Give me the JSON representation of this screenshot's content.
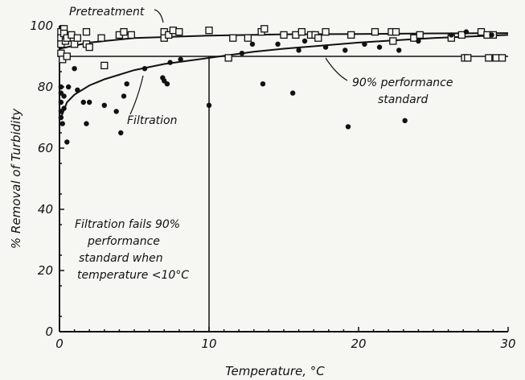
{
  "chart_data": {
    "type": "scatter",
    "title": "",
    "xlabel": "Temperature, °C",
    "ylabel": "% Removal of Turbidity",
    "xlim": [
      0,
      30
    ],
    "ylim": [
      0,
      100
    ],
    "x_ticks": [
      "0",
      "10",
      "20",
      "30"
    ],
    "y_ticks": [
      "0",
      "20",
      "40",
      "60",
      "80",
      "100"
    ],
    "grid": false,
    "series": [
      {
        "name": "Pretreatment",
        "marker": "open-square",
        "points": [
          [
            0.1,
            98
          ],
          [
            0.1,
            96
          ],
          [
            0.1,
            94
          ],
          [
            0.1,
            91
          ],
          [
            0.2,
            89
          ],
          [
            0.3,
            99
          ],
          [
            0.3,
            97.5
          ],
          [
            0.4,
            95
          ],
          [
            0.5,
            96
          ],
          [
            0.5,
            90
          ],
          [
            0.8,
            97
          ],
          [
            1.0,
            94
          ],
          [
            1.2,
            96
          ],
          [
            1.8,
            98
          ],
          [
            1.8,
            94
          ],
          [
            2.0,
            93
          ],
          [
            2.8,
            96
          ],
          [
            3.0,
            87
          ],
          [
            4.0,
            97
          ],
          [
            4.3,
            98
          ],
          [
            4.8,
            97
          ],
          [
            7.0,
            98
          ],
          [
            7.0,
            96
          ],
          [
            7.3,
            97
          ],
          [
            7.6,
            98.5
          ],
          [
            8.0,
            98
          ],
          [
            10.0,
            98.5
          ],
          [
            11.3,
            89.5
          ],
          [
            11.6,
            96
          ],
          [
            12.6,
            96
          ],
          [
            13.5,
            98
          ],
          [
            13.7,
            99
          ],
          [
            15.0,
            97
          ],
          [
            15.8,
            97
          ],
          [
            16.2,
            98
          ],
          [
            16.8,
            97
          ],
          [
            17.1,
            97
          ],
          [
            17.3,
            96
          ],
          [
            17.8,
            98
          ],
          [
            19.5,
            97
          ],
          [
            21.1,
            98
          ],
          [
            22.2,
            98
          ],
          [
            22.3,
            95
          ],
          [
            22.5,
            98
          ],
          [
            23.7,
            96
          ],
          [
            24.1,
            97
          ],
          [
            26.2,
            96
          ],
          [
            26.9,
            97
          ],
          [
            28.2,
            98
          ],
          [
            28.6,
            97
          ],
          [
            28.7,
            89.5
          ],
          [
            29.0,
            97
          ],
          [
            29.2,
            89.5
          ],
          [
            27.1,
            89.5
          ],
          [
            27.3,
            89.5
          ],
          [
            29.6,
            89.5
          ]
        ]
      },
      {
        "name": "Filtration",
        "marker": "filled-circle",
        "points": [
          [
            0.1,
            80
          ],
          [
            0.1,
            78
          ],
          [
            0.1,
            75
          ],
          [
            0.1,
            72
          ],
          [
            0.1,
            70
          ],
          [
            0.2,
            68
          ],
          [
            0.3,
            73
          ],
          [
            0.3,
            77
          ],
          [
            0.5,
            62
          ],
          [
            0.6,
            80
          ],
          [
            1.0,
            86
          ],
          [
            1.2,
            79
          ],
          [
            1.6,
            75
          ],
          [
            1.8,
            68
          ],
          [
            2.0,
            75
          ],
          [
            3.0,
            74
          ],
          [
            3.8,
            72
          ],
          [
            4.1,
            65
          ],
          [
            4.3,
            77
          ],
          [
            4.5,
            81
          ],
          [
            5.7,
            86
          ],
          [
            6.9,
            83
          ],
          [
            7.0,
            82
          ],
          [
            7.2,
            81
          ],
          [
            7.4,
            88
          ],
          [
            8.1,
            89
          ],
          [
            10.0,
            74
          ],
          [
            13.6,
            81
          ],
          [
            15.6,
            78
          ],
          [
            19.3,
            67
          ],
          [
            23.1,
            69
          ],
          [
            12.2,
            91
          ],
          [
            16.0,
            92
          ],
          [
            17.8,
            93
          ],
          [
            19.1,
            92
          ],
          [
            20.4,
            94
          ],
          [
            21.4,
            93
          ],
          [
            22.7,
            92
          ],
          [
            24.0,
            95
          ],
          [
            26.2,
            97
          ],
          [
            27.2,
            98
          ],
          [
            28.9,
            97
          ],
          [
            12.9,
            94
          ],
          [
            14.6,
            94
          ],
          [
            16.4,
            95
          ]
        ]
      }
    ],
    "fit_curves": [
      {
        "name": "Pretreatment",
        "x": [
          0,
          2,
          5,
          10,
          15,
          20,
          25,
          30
        ],
        "y": [
          92.5,
          94.5,
          96,
          96.8,
          97.2,
          97.3,
          97.5,
          97.6
        ]
      },
      {
        "name": "Filtration",
        "x": [
          0.1,
          0.5,
          1,
          2,
          3,
          5,
          7,
          10,
          13,
          15,
          20,
          25,
          30
        ],
        "y": [
          70,
          75,
          77.5,
          80.5,
          82.5,
          85.5,
          87.5,
          89.5,
          91.5,
          92.5,
          94.5,
          96,
          97
        ]
      }
    ],
    "reference_lines": [
      {
        "orientation": "horizontal",
        "y": 90,
        "label": "90% performance standard"
      },
      {
        "orientation": "vertical",
        "x": 10
      }
    ],
    "annotations": [
      {
        "key": "pretreatment",
        "text": "Pretreatment"
      },
      {
        "key": "filtration",
        "text": "Filtration"
      },
      {
        "key": "standard_line1",
        "text": "90% performance"
      },
      {
        "key": "standard_line2",
        "text": "standard"
      },
      {
        "key": "fail_line1",
        "text": "Filtration fails 90%"
      },
      {
        "key": "fail_line2",
        "text": "performance"
      },
      {
        "key": "fail_line3",
        "text": "standard when"
      },
      {
        "key": "fail_line4",
        "text": "temperature <10°C"
      }
    ]
  }
}
